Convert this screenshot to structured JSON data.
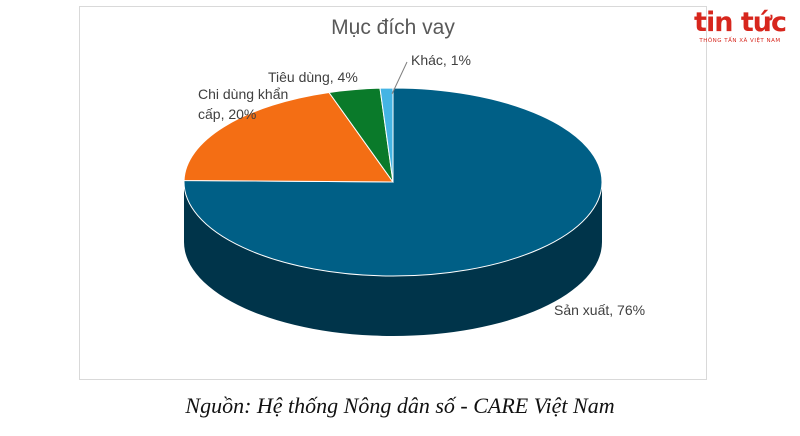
{
  "chart_data": {
    "type": "pie",
    "title": "Mục đích vay",
    "slices": [
      {
        "label": "Sản xuất, 76%",
        "value": 76,
        "color": "#005f86"
      },
      {
        "label": "Chi dùng khẩn cấp, 20%",
        "value": 20,
        "color": "#f46e14"
      },
      {
        "label": "Tiêu dùng, 4%",
        "value": 4,
        "color": "#0a7a2a"
      },
      {
        "label": "Khác, 1%",
        "value": 1,
        "color": "#44b4e4"
      }
    ]
  },
  "logo": {
    "main": "tin tức",
    "sub": "THÔNG TẤN XÃ VIỆT NAM"
  },
  "source": "Nguồn: Hệ thống Nông dân số - CARE Việt Nam"
}
